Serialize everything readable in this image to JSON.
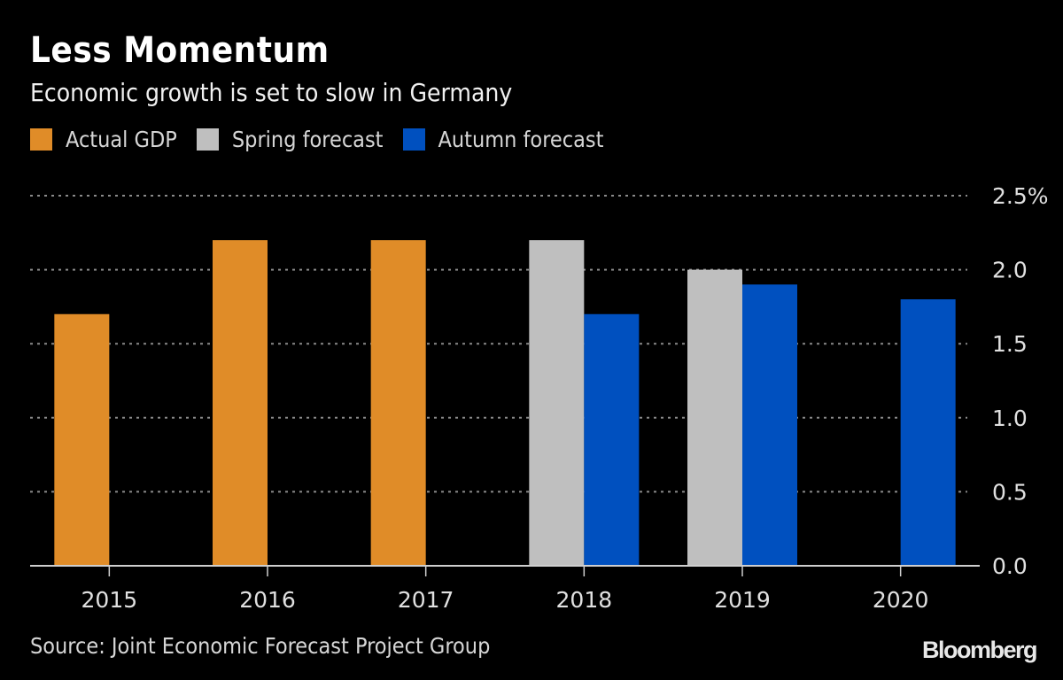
{
  "chart_data": {
    "type": "bar",
    "title": "Less Momentum",
    "subtitle": "Economic growth is set to slow in Germany",
    "xlabel": "",
    "ylabel": "",
    "categories": [
      "2015",
      "2016",
      "2017",
      "2018",
      "2019",
      "2020"
    ],
    "series": [
      {
        "name": "Actual GDP",
        "color": "#e08c28",
        "values": [
          1.7,
          2.2,
          2.2,
          null,
          null,
          null
        ]
      },
      {
        "name": "Spring forecast",
        "color": "#bfbfbf",
        "values": [
          null,
          null,
          null,
          2.2,
          2.0,
          null
        ]
      },
      {
        "name": "Autumn forecast",
        "color": "#0050bf",
        "values": [
          null,
          null,
          null,
          1.7,
          1.9,
          1.8
        ]
      }
    ],
    "ylim": [
      0,
      2.5
    ],
    "yticks": [
      "0.0",
      "0.5",
      "1.0",
      "1.5",
      "2.0",
      "2.5%"
    ],
    "ytick_values": [
      0,
      0.5,
      1.0,
      1.5,
      2.0,
      2.5
    ],
    "grid": true,
    "legend_position": "top-left",
    "y_axis_side": "right"
  },
  "source": "Source: Joint Economic Forecast Project Group",
  "brand": "Bloomberg"
}
